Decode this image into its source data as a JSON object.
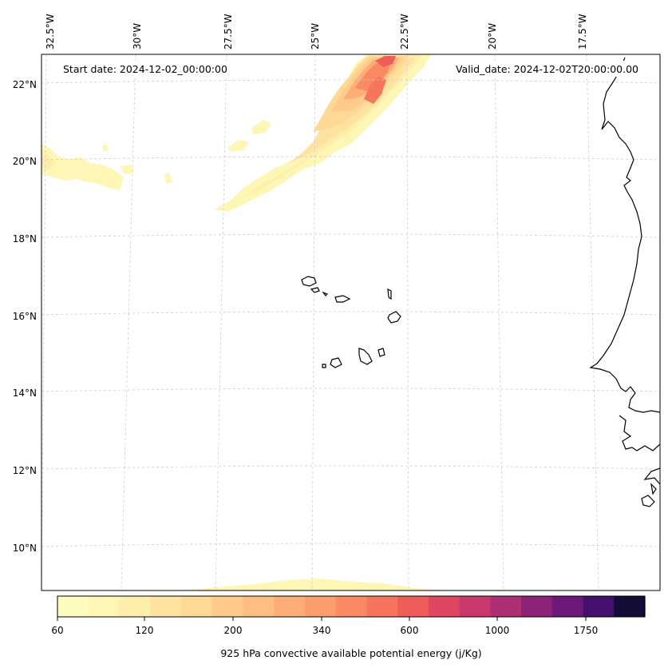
{
  "map": {
    "lon_labels": [
      "32.5°W",
      "30°W",
      "27.5°W",
      "25°W",
      "22.5°W",
      "20°W",
      "17.5°W"
    ],
    "lat_labels": [
      "22°N",
      "20°N",
      "18°N",
      "16°N",
      "14°N",
      "12°N",
      "10°N"
    ],
    "start_date": "Start date: 2024-12-02_00:00:00",
    "valid_date": "Valid_date: 2024-12-02T20:00:00.00",
    "field": "925 hPa convective available potential energy",
    "gridlines": true
  },
  "colorbar": {
    "label": "925 hPa convective available potential energy (j/Kg)",
    "tick_labels": [
      "60",
      "120",
      "200",
      "340",
      "600",
      "1000",
      "1750"
    ],
    "colors": [
      "#fefbbf",
      "#fef6b5",
      "#feeeab",
      "#fee3a0",
      "#fed895",
      "#fecb8b",
      "#febd81",
      "#fdad77",
      "#fc9d6d",
      "#fa8a64",
      "#f6755c",
      "#ee5d59",
      "#df4760",
      "#c9396b",
      "#ad2f74",
      "#8d2379",
      "#6b1879",
      "#45106d",
      "#130c34"
    ],
    "palette": "magma_r"
  }
}
